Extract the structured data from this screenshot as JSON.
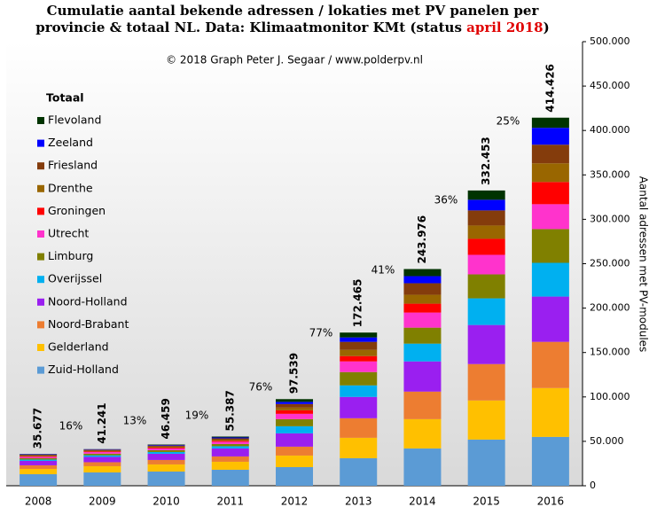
{
  "chart_data": {
    "type": "stacked_bar",
    "title": [
      "Cumulatie aantal bekende adressen / lokaties met PV panelen per",
      "provincie & totaal NL. Data: Klimaatmonitor KMt (status ",
      "april 2018",
      ")"
    ],
    "subtitle": "© 2018 Graph Peter J. Segaar / www.polderpv.nl",
    "y_label": "Aantal adressen met PV-modules",
    "legend_title": "Totaal",
    "categories": [
      "2008",
      "2009",
      "2010",
      "2011",
      "2012",
      "2013",
      "2014",
      "2015",
      "2016"
    ],
    "totals": [
      35677,
      41241,
      46459,
      55387,
      97539,
      172465,
      243976,
      332453,
      414426
    ],
    "value_labels": [
      "35.677",
      "41.241",
      "46.459",
      "55.387",
      "97.539",
      "172.465",
      "243.976",
      "332.453",
      "414.426"
    ],
    "annotations": [
      "16%",
      "13%",
      "19%",
      "76%",
      "77%",
      "41%",
      "36%",
      "25%"
    ],
    "series": [
      {
        "name": "Zuid-Holland",
        "color": "#5b9bd5",
        "values": [
          13000,
          15000,
          16000,
          18000,
          21000,
          31000,
          42000,
          52000,
          55000
        ]
      },
      {
        "name": "Gelderland",
        "color": "#ffc000",
        "values": [
          6000,
          7000,
          8000,
          9000,
          13000,
          23000,
          33000,
          44000,
          55000
        ]
      },
      {
        "name": "Noord-Brabant",
        "color": "#ed7d31",
        "values": [
          4000,
          4500,
          5000,
          6000,
          10000,
          22000,
          31000,
          41000,
          52000
        ]
      },
      {
        "name": "Noord-Holland",
        "color": "#9a1ff0",
        "values": [
          5000,
          6000,
          7000,
          9000,
          15000,
          24000,
          34000,
          44000,
          51000
        ]
      },
      {
        "name": "Overijssel",
        "color": "#00b0f0",
        "values": [
          1500,
          1800,
          2000,
          2500,
          8000,
          13000,
          20000,
          30000,
          38000
        ]
      },
      {
        "name": "Limburg",
        "color": "#808000",
        "values": [
          1500,
          1800,
          2000,
          2500,
          8000,
          15000,
          18000,
          27000,
          38000
        ]
      },
      {
        "name": "Utrecht",
        "color": "#ff33cc",
        "values": [
          1500,
          1800,
          2000,
          2500,
          6000,
          12000,
          17000,
          22000,
          28000
        ]
      },
      {
        "name": "Groningen",
        "color": "#ff0000",
        "values": [
          700,
          800,
          1000,
          1200,
          4000,
          6000,
          10000,
          18000,
          25000
        ]
      },
      {
        "name": "Drenthe",
        "color": "#996600",
        "values": [
          700,
          800,
          1000,
          1200,
          3000,
          7000,
          10000,
          15000,
          21000
        ]
      },
      {
        "name": "Friesland",
        "color": "#843c0c",
        "values": [
          1000,
          1100,
          1300,
          1500,
          4000,
          9000,
          13000,
          17000,
          21000
        ]
      },
      {
        "name": "Zeeland",
        "color": "#0000ff",
        "values": [
          500,
          500,
          700,
          1000,
          2500,
          5000,
          8000,
          12000,
          19000
        ]
      },
      {
        "name": "Flevoland",
        "color": "#003300",
        "values": [
          277,
          141,
          459,
          987,
          3039,
          5465,
          7976,
          10453,
          11426
        ]
      }
    ],
    "ylim": [
      0,
      500000
    ],
    "yticks": [
      0,
      {
        "value": 50000,
        "label": "50.000"
      },
      {
        "value": 100000,
        "label": "100.000"
      },
      {
        "value": 150000,
        "label": "150.000"
      },
      {
        "value": 200000,
        "label": "200.000"
      },
      {
        "value": 250000,
        "label": "250.000"
      },
      {
        "value": 300000,
        "label": "300.000"
      },
      {
        "value": 350000,
        "label": "350.000"
      },
      {
        "value": 400000,
        "label": "400.000"
      },
      {
        "value": 450000,
        "label": "450.000"
      },
      {
        "value": 500000,
        "label": "500.000"
      }
    ],
    "y_axis_side": "right"
  }
}
